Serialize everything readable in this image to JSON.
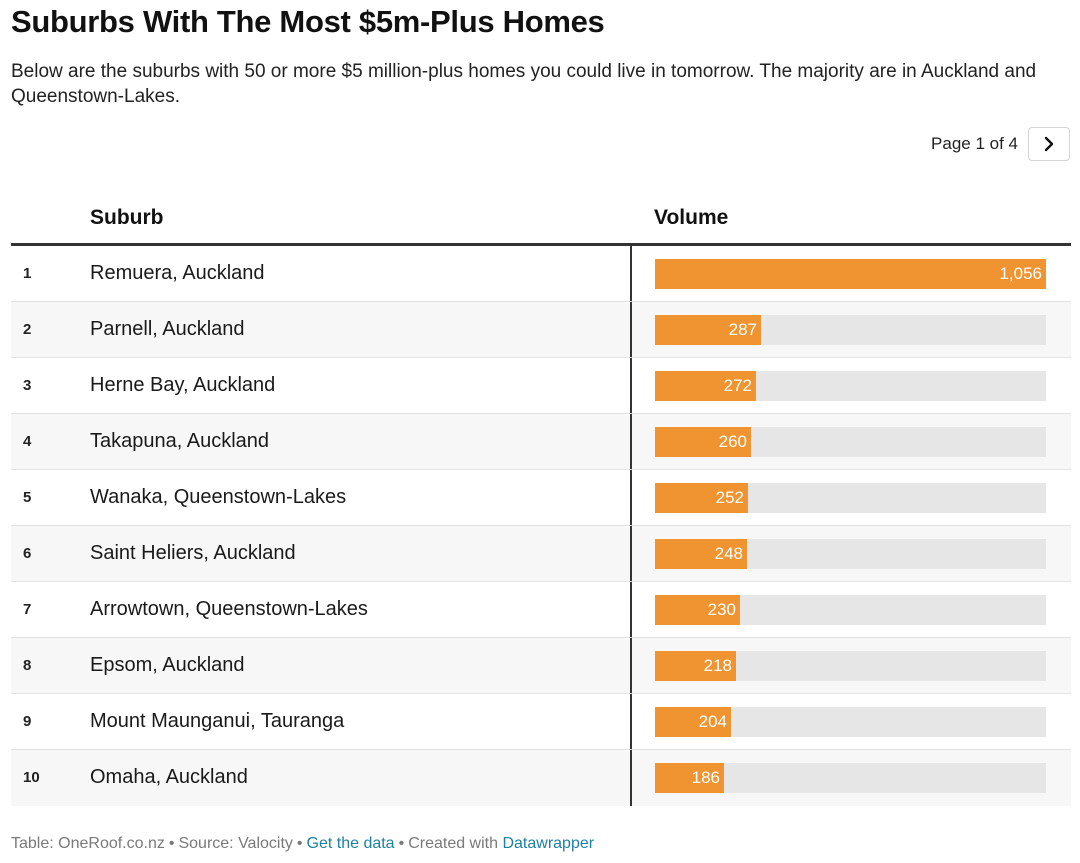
{
  "header": {
    "title": "Suburbs With The Most $5m-Plus Homes",
    "subtitle": "Below are the suburbs with 50 or more $5 million-plus homes you could live in tomorrow. The majority are in Auckland and Queenstown-Lakes."
  },
  "pager": {
    "label": "Page 1 of 4",
    "next_icon": "chevron-right-icon"
  },
  "footer": {
    "prefix": "Table: OneRoof.co.nz",
    "source": "Source: Valocity",
    "get_data": "Get the data",
    "created_prefix": "Created with",
    "created_link": "Datawrapper"
  },
  "colors": {
    "bar": "#ef9430",
    "track": "#e6e6e6",
    "link": "#1d81a2"
  },
  "chart_data": {
    "type": "table",
    "columns": [
      "",
      "Suburb",
      "Volume"
    ],
    "max_value": 1056,
    "rows": [
      {
        "rank": "1",
        "suburb": "Remuera, Auckland",
        "volume": 1056,
        "label": "1,056"
      },
      {
        "rank": "2",
        "suburb": "Parnell, Auckland",
        "volume": 287,
        "label": "287"
      },
      {
        "rank": "3",
        "suburb": "Herne Bay, Auckland",
        "volume": 272,
        "label": "272"
      },
      {
        "rank": "4",
        "suburb": "Takapuna, Auckland",
        "volume": 260,
        "label": "260"
      },
      {
        "rank": "5",
        "suburb": "Wanaka, Queenstown-Lakes",
        "volume": 252,
        "label": "252"
      },
      {
        "rank": "6",
        "suburb": "Saint Heliers, Auckland",
        "volume": 248,
        "label": "248"
      },
      {
        "rank": "7",
        "suburb": "Arrowtown, Queenstown-Lakes",
        "volume": 230,
        "label": "230"
      },
      {
        "rank": "8",
        "suburb": "Epsom, Auckland",
        "volume": 218,
        "label": "218"
      },
      {
        "rank": "9",
        "suburb": "Mount Maunganui, Tauranga",
        "volume": 204,
        "label": "204"
      },
      {
        "rank": "10",
        "suburb": "Omaha, Auckland",
        "volume": 186,
        "label": "186"
      }
    ]
  }
}
